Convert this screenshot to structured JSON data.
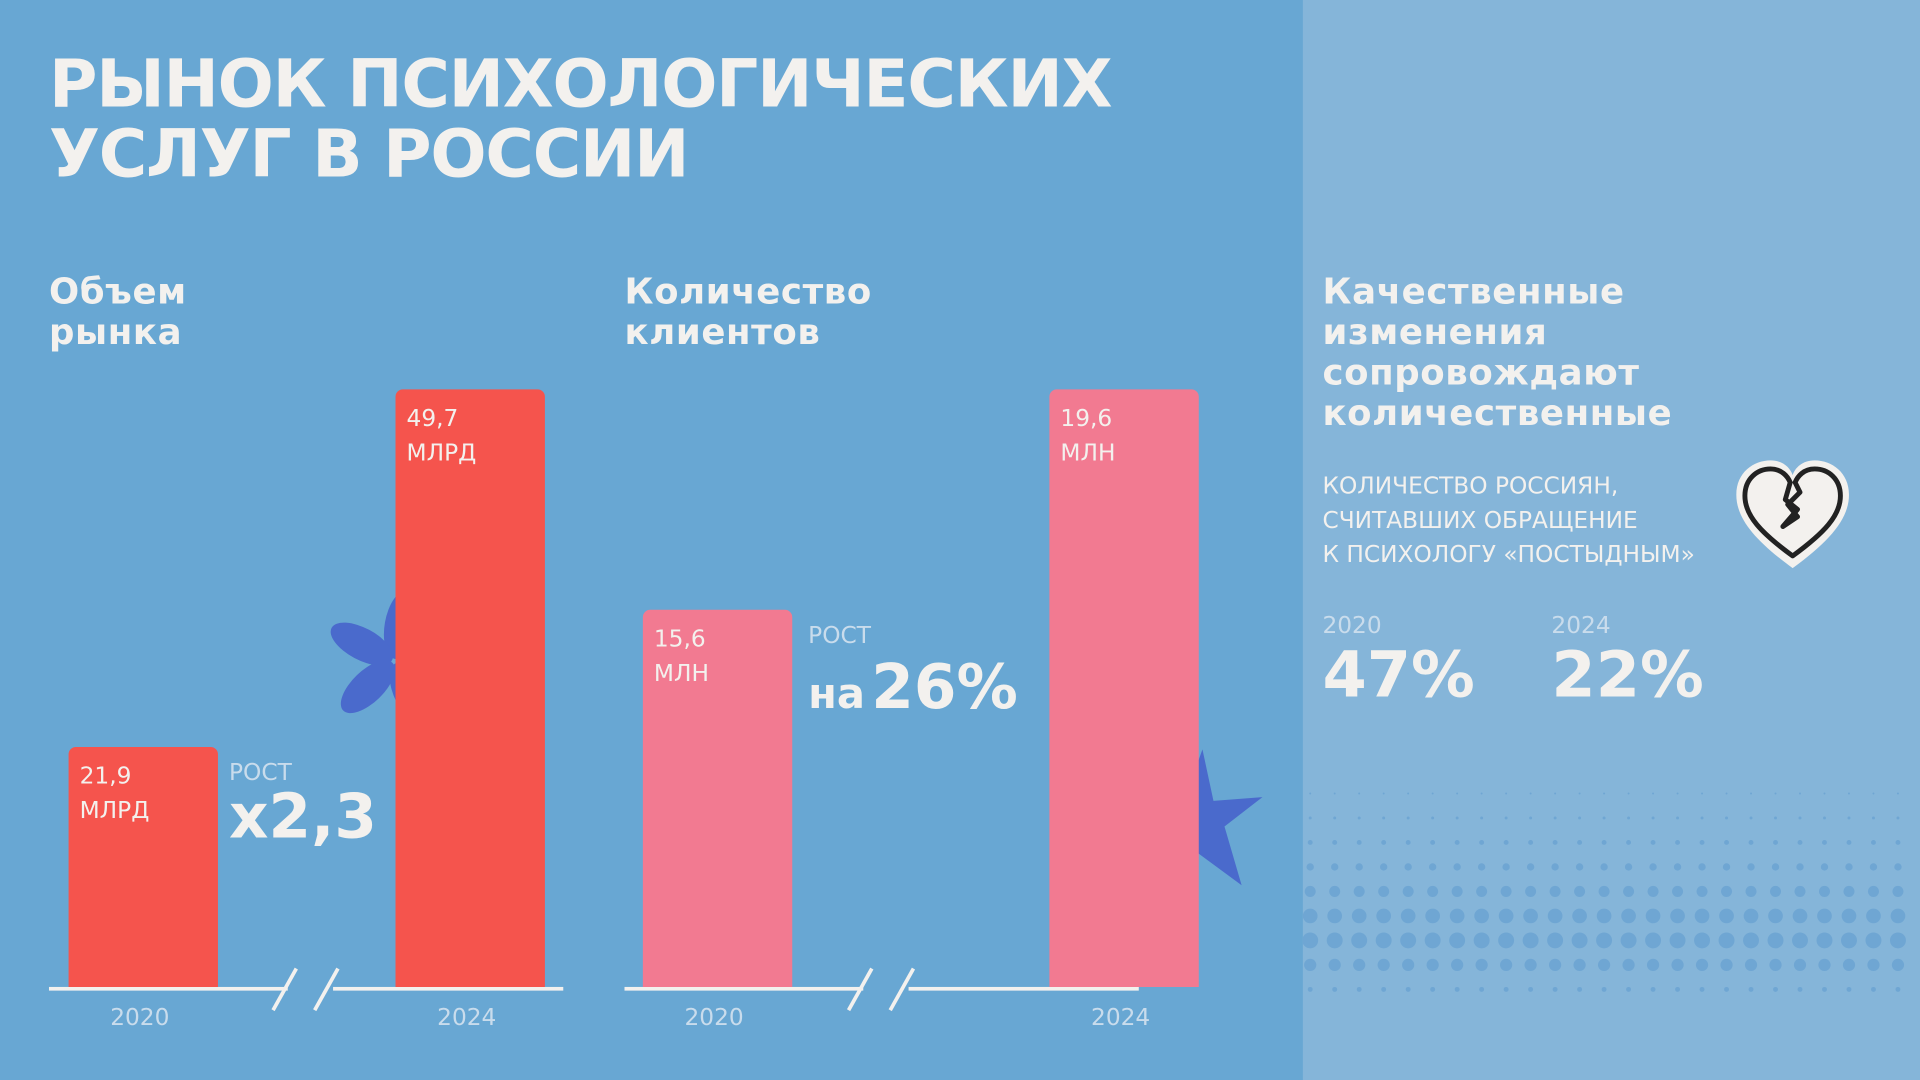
{
  "title": "РЫНОК ПСИХОЛОГИЧЕСКИХ УСЛУГ В РОССИИ",
  "title_lines": [
    "РЫНОК ПСИХОЛОГИЧЕСКИХ",
    "УСЛУГ В РОССИИ"
  ],
  "market": {
    "heading_lines": [
      "Объем",
      "рынка"
    ],
    "growth_label": "РОСТ",
    "growth_value": "x2,3",
    "axis_break": true
  },
  "clients": {
    "heading_lines": [
      "Количество",
      "клиентов"
    ],
    "growth_label": "РОСТ",
    "growth_prefix": "на",
    "growth_value": "26%"
  },
  "quality": {
    "heading_lines": [
      "Качественные",
      "изменения",
      "сопровождают",
      "количественные"
    ],
    "subtitle_lines": [
      "КОЛИЧЕСТВО РОССИЯН,",
      "СЧИТАВШИХ ОБРАЩЕНИЕ",
      "К ПСИХОЛОГУ «ПОСТЫДНЫМ»"
    ],
    "icon": "broken-heart-icon",
    "stats": [
      {
        "year": "2020",
        "value": "47%"
      },
      {
        "year": "2024",
        "value": "22%"
      }
    ]
  },
  "colors": {
    "background": "#68a7d3",
    "panel": "#85b5d9",
    "market_bar": "#f5544d",
    "clients_bar": "#f27a91",
    "accent": "#4a6acc",
    "text": "#f3f1ee"
  },
  "chart_data": [
    {
      "type": "bar",
      "categories": [
        "2020",
        "2024"
      ],
      "values": [
        21.9,
        49.7
      ],
      "unit": "МЛРД",
      "data_labels": [
        [
          "21,9",
          "МЛРД"
        ],
        [
          "49,7",
          "МЛРД"
        ]
      ]
    },
    {
      "type": "bar",
      "categories": [
        "2020",
        "2024"
      ],
      "values": [
        15.6,
        19.6
      ],
      "unit": "МЛН",
      "data_labels": [
        [
          "15,6",
          "МЛН"
        ],
        [
          "19,6",
          "МЛН"
        ]
      ]
    }
  ]
}
